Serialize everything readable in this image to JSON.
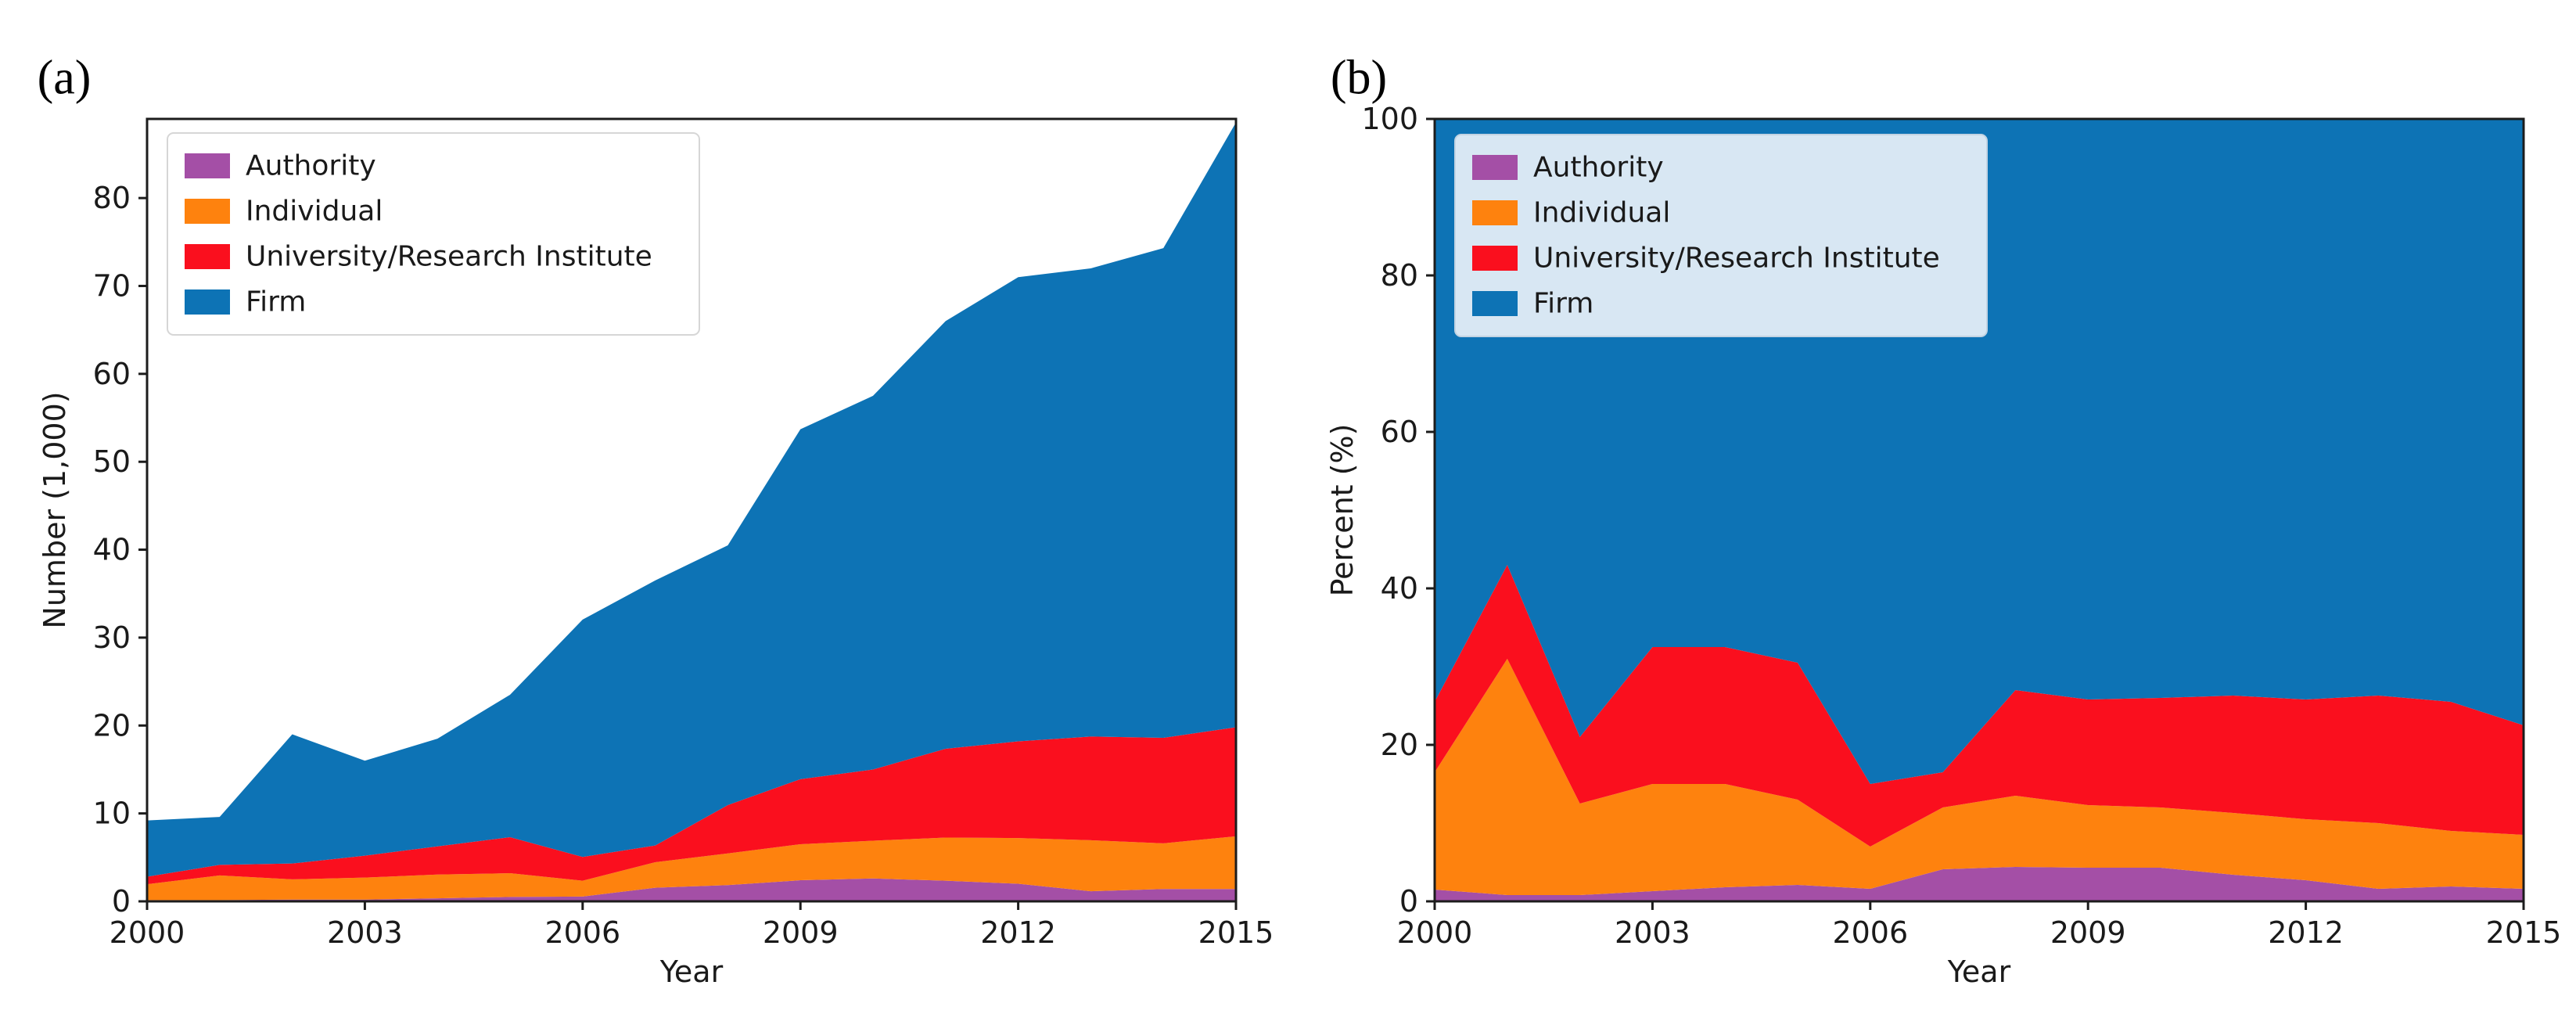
{
  "figure": {
    "background": "#ffffff",
    "frame_color": "#1c1c1c",
    "text_color": "#1a1a1a",
    "panels": [
      {
        "label": "(a)",
        "xlabel": "Year",
        "ylabel": "Number (1,000)",
        "yticks": [
          0,
          10,
          20,
          30,
          40,
          50,
          60,
          70,
          80
        ],
        "xticks": [
          2000,
          2003,
          2006,
          2009,
          2012,
          2015
        ],
        "legend_labels": [
          "Authority",
          "Individual",
          "University/Research Institute",
          "Firm"
        ],
        "legend_bg": "#ffffff",
        "legend_border": "#d6d6d6"
      },
      {
        "label": "(b)",
        "xlabel": "Year",
        "ylabel": "Percent (%)",
        "yticks": [
          0,
          20,
          40,
          60,
          80,
          100
        ],
        "xticks": [
          2000,
          2003,
          2006,
          2009,
          2012,
          2015
        ],
        "legend_labels": [
          "Authority",
          "Individual",
          "University/Research Institute",
          "Firm"
        ],
        "legend_bg": "#d8e7f3",
        "legend_border": "#c2d3e2"
      }
    ]
  },
  "chart_data": [
    {
      "type": "area",
      "stacked": true,
      "xlabel": "Year",
      "ylabel": "Number (1,000)",
      "x": [
        2000,
        2001,
        2002,
        2003,
        2004,
        2005,
        2006,
        2007,
        2008,
        2009,
        2010,
        2011,
        2012,
        2013,
        2014,
        2015
      ],
      "ylim": [
        0,
        89
      ],
      "grid": false,
      "legend_position": "upper left",
      "series": [
        {
          "name": "Authority",
          "color": "#a44fa6",
          "values": [
            0.15,
            0.15,
            0.2,
            0.2,
            0.35,
            0.5,
            0.55,
            1.55,
            1.85,
            2.4,
            2.6,
            2.35,
            2.0,
            1.15,
            1.4,
            1.4
          ]
        },
        {
          "name": "Individual",
          "color": "#fe820e",
          "values": [
            1.8,
            2.8,
            2.3,
            2.5,
            2.7,
            2.7,
            1.8,
            2.9,
            3.6,
            4.1,
            4.3,
            4.9,
            5.2,
            5.8,
            5.2,
            6.0
          ]
        },
        {
          "name": "University/Research Institute",
          "color": "#fa0f1e",
          "values": [
            0.85,
            1.2,
            1.8,
            2.5,
            3.2,
            4.1,
            2.7,
            1.9,
            5.5,
            7.4,
            8.1,
            10.1,
            11.0,
            11.8,
            12.0,
            12.4
          ]
        },
        {
          "name": "Firm",
          "color": "#0d73b5",
          "values": [
            6.4,
            5.45,
            14.7,
            10.8,
            12.25,
            16.2,
            27.0,
            30.15,
            29.55,
            39.8,
            42.5,
            48.65,
            52.8,
            53.25,
            55.7,
            68.8
          ]
        }
      ]
    },
    {
      "type": "area",
      "stacked": true,
      "xlabel": "Year",
      "ylabel": "Percent (%)",
      "x": [
        2000,
        2001,
        2002,
        2003,
        2004,
        2005,
        2006,
        2007,
        2008,
        2009,
        2010,
        2011,
        2012,
        2013,
        2014,
        2015
      ],
      "ylim": [
        0,
        100
      ],
      "grid": false,
      "legend_position": "upper left",
      "series": [
        {
          "name": "Authority",
          "color": "#a44fa6",
          "values": [
            1.5,
            0.8,
            0.8,
            1.3,
            1.8,
            2.1,
            1.6,
            4.1,
            4.4,
            4.3,
            4.3,
            3.4,
            2.7,
            1.6,
            1.9,
            1.6
          ]
        },
        {
          "name": "Individual",
          "color": "#fe820e",
          "values": [
            15.0,
            30.2,
            11.7,
            13.7,
            13.2,
            10.9,
            5.4,
            7.9,
            9.1,
            8.0,
            7.7,
            7.9,
            7.8,
            8.4,
            7.1,
            6.9
          ]
        },
        {
          "name": "University/Research Institute",
          "color": "#fa0f1e",
          "values": [
            9.0,
            12.0,
            8.5,
            17.5,
            17.5,
            17.5,
            8.0,
            4.5,
            13.5,
            13.5,
            14.0,
            15.0,
            15.3,
            16.3,
            16.5,
            14.0
          ]
        },
        {
          "name": "Firm",
          "color": "#0d73b5",
          "values": [
            74.5,
            57.0,
            79.0,
            67.5,
            67.5,
            69.5,
            85.0,
            83.5,
            73.0,
            74.2,
            74.0,
            73.7,
            74.2,
            73.7,
            74.5,
            77.5
          ]
        }
      ]
    }
  ]
}
